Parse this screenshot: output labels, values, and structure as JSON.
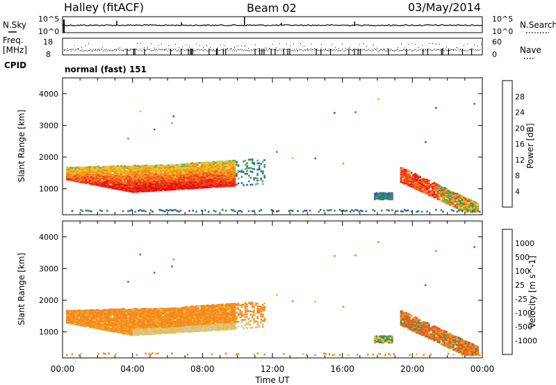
{
  "header": {
    "station": "Halley (fitACF)",
    "beam": "Beam 02",
    "date": "03/May/2014"
  },
  "aux": {
    "nsky_label": "N.Sky",
    "nsearch_label": "N.Search",
    "freq_label_1": "Freq.",
    "freq_label_2": "[MHz]",
    "nave_label": "Nave",
    "cpid_label": "CPID",
    "cpid_value": "normal (fast) 151",
    "noise_left_ticks": [
      "10^5",
      "10^0"
    ],
    "noise_right_ticks": [
      "10^5",
      "10^0"
    ],
    "freq_left_ticks": [
      "18",
      "8"
    ],
    "nave_right_ticks": [
      "60",
      "0"
    ]
  },
  "axes": {
    "ylabel": "Slant Range [km]",
    "xlabel": "Time UT",
    "x_ticks": [
      "00:00",
      "04:00",
      "08:00",
      "12:00",
      "16:00",
      "20:00",
      "00:00"
    ],
    "y_ticks": [
      "1000",
      "2000",
      "3000",
      "4000"
    ],
    "y_tick_values": [
      1000,
      2000,
      3000,
      4000
    ],
    "y_range_km": [
      180,
      4500
    ],
    "x_range_hours": [
      0,
      24
    ]
  },
  "colorbars": {
    "power": {
      "label": "Power [dB]",
      "ticks": [
        "4",
        "8",
        "12",
        "16",
        "20",
        "24",
        "28"
      ],
      "colors": [
        "#1f2bd6",
        "#2a5fb8",
        "#3c8c5c",
        "#5ab84a",
        "#f2c025",
        "#f58a1e",
        "#f0401c",
        "#e01010"
      ]
    },
    "velocity": {
      "label": "Velocity [m s^-1]",
      "ticks": [
        "1000",
        "500",
        "100",
        "25",
        "-25",
        "-100",
        "-500",
        "-1000"
      ],
      "colors": [
        "#2a3fd0",
        "#2a6cb0",
        "#3a8f5a",
        "#66c040",
        "#c8c8bc",
        "#f2bc30",
        "#f58a1e",
        "#f05a1a",
        "#e01818"
      ]
    }
  },
  "chart_data": [
    {
      "type": "heatmap",
      "title": "Power",
      "x_unit": "hours UT",
      "y_unit": "km",
      "colorbar_label": "Power [dB]",
      "regions": [
        {
          "t": [
            0.3,
            9.7
          ],
          "range_km": [
            900,
            1800
          ],
          "power_db": 20
        },
        {
          "t": [
            2.5,
            7.0
          ],
          "range_km": [
            950,
            1250
          ],
          "power_db": 26
        },
        {
          "t": [
            17.7,
            18.9
          ],
          "range_km": [
            650,
            850
          ],
          "power_db": 8
        },
        {
          "t": [
            19.3,
            21.9
          ],
          "range_km": [
            600,
            1600
          ],
          "power_db": 26
        },
        {
          "t": [
            21.5,
            23.8
          ],
          "range_km": [
            250,
            900
          ],
          "power_db": 24
        },
        {
          "t": [
            0,
            24
          ],
          "range_km": [
            250,
            320
          ],
          "power_db": 8
        }
      ]
    },
    {
      "type": "heatmap",
      "title": "Velocity",
      "x_unit": "hours UT",
      "y_unit": "km",
      "colorbar_label": "Velocity [m s^-1]",
      "regions": [
        {
          "t": [
            0.3,
            11.5
          ],
          "range_km": [
            900,
            1800
          ],
          "velocity_ms": -100
        },
        {
          "t": [
            4.0,
            11.5
          ],
          "range_km": [
            1000,
            1400
          ],
          "velocity_ms": 0
        },
        {
          "t": [
            17.7,
            18.9
          ],
          "range_km": [
            650,
            900
          ],
          "velocity_ms": 100
        },
        {
          "t": [
            19.3,
            23.8
          ],
          "range_km": [
            300,
            1600
          ],
          "velocity_ms": -300
        }
      ]
    }
  ]
}
